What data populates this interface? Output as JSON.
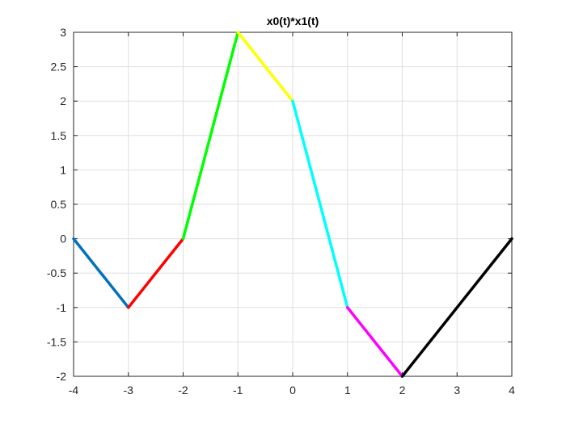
{
  "chart_data": {
    "type": "line",
    "title": "x0(t)*x1(t)",
    "xlabel": "",
    "ylabel": "",
    "xlim": [
      -4,
      4
    ],
    "ylim": [
      -2,
      3
    ],
    "grid": true,
    "x_ticks": [
      -4,
      -3,
      -2,
      -1,
      0,
      1,
      2,
      3,
      4
    ],
    "y_ticks": [
      -2,
      -1.5,
      -1,
      -0.5,
      0,
      0.5,
      1,
      1.5,
      2,
      2.5,
      3
    ],
    "x_tick_labels": [
      "-4",
      "-3",
      "-2",
      "-1",
      "0",
      "1",
      "2",
      "3",
      "4"
    ],
    "y_tick_labels": [
      "-2",
      "-1.5",
      "-1",
      "-0.5",
      "0",
      "0.5",
      "1",
      "1.5",
      "2",
      "2.5",
      "3"
    ],
    "series": [
      {
        "color": "#0072BD",
        "x": [
          -4,
          -3
        ],
        "y": [
          0,
          -1
        ]
      },
      {
        "color": "#FF0000",
        "x": [
          -3,
          -2
        ],
        "y": [
          -1,
          0
        ]
      },
      {
        "color": "#00FF00",
        "x": [
          -2,
          -1
        ],
        "y": [
          0,
          3
        ]
      },
      {
        "color": "#FFFF00",
        "x": [
          -1,
          0
        ],
        "y": [
          3,
          2
        ]
      },
      {
        "color": "#00FFFF",
        "x": [
          0,
          1
        ],
        "y": [
          2,
          -1
        ]
      },
      {
        "color": "#FF00FF",
        "x": [
          1,
          2
        ],
        "y": [
          -1,
          -2
        ]
      },
      {
        "color": "#000000",
        "x": [
          2,
          4
        ],
        "y": [
          -2,
          0
        ]
      }
    ]
  }
}
